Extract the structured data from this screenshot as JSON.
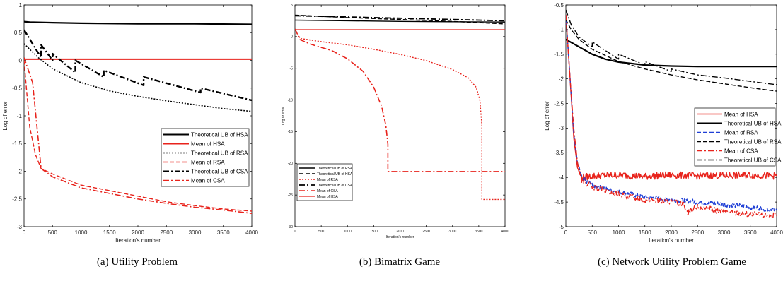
{
  "chart_data": [
    {
      "type": "line",
      "caption": "(a) Utility Problem",
      "xlabel": "Iteration's number",
      "ylabel": "Log of error",
      "xlim": [
        0,
        4000
      ],
      "ylim": [
        -3,
        1
      ],
      "xticks": [
        0,
        500,
        1000,
        1500,
        2000,
        2500,
        3000,
        3500,
        4000
      ],
      "yticks": [
        -3,
        -2.5,
        -2,
        -1.5,
        -1,
        -0.5,
        0,
        0.5,
        1
      ],
      "legend_position": "right",
      "series": [
        {
          "name": "Theoretical UB of HSA",
          "color": "#000000",
          "style": "solid",
          "width": 2.2,
          "x": [
            0,
            100,
            500,
            1000,
            2000,
            3000,
            4000
          ],
          "y": [
            0.7,
            0.69,
            0.68,
            0.67,
            0.66,
            0.66,
            0.65
          ]
        },
        {
          "name": "Mean of HSA",
          "color": "#e8231c",
          "style": "solid",
          "width": 2,
          "x": [
            0,
            4000
          ],
          "y": [
            0.02,
            0.02
          ]
        },
        {
          "name": "Theoretical UB of RSA",
          "color": "#000000",
          "style": "dotted",
          "width": 1.6,
          "x": [
            0,
            250,
            500,
            1000,
            1500,
            2000,
            2500,
            3000,
            3500,
            4000
          ],
          "y": [
            0.3,
            0.05,
            -0.15,
            -0.4,
            -0.55,
            -0.65,
            -0.73,
            -0.8,
            -0.87,
            -0.92
          ]
        },
        {
          "name": "Mean of RSA",
          "color": "#e8231c",
          "style": "dashed",
          "width": 1.4,
          "x": [
            0,
            50,
            100,
            200,
            300,
            500,
            1000,
            1500,
            2000,
            2500,
            3000,
            3500,
            4000
          ],
          "y": [
            0.0,
            -0.6,
            -1.2,
            -1.7,
            -1.95,
            -2.05,
            -2.25,
            -2.35,
            -2.45,
            -2.55,
            -2.62,
            -2.68,
            -2.72
          ]
        },
        {
          "name": "Theoretical UB of CSA",
          "color": "#000000",
          "style": "dashdot",
          "width": 2.4,
          "x": [
            0,
            300,
            300,
            500,
            500,
            900,
            900,
            1400,
            1400,
            2100,
            2100,
            3100,
            3100,
            4000
          ],
          "y": [
            0.55,
            0.05,
            0.28,
            0.0,
            0.12,
            -0.22,
            0.0,
            -0.3,
            -0.18,
            -0.45,
            -0.3,
            -0.58,
            -0.5,
            -0.72
          ]
        },
        {
          "name": "Mean of CSA",
          "color": "#e8231c",
          "style": "dashdot",
          "width": 1.6,
          "x": [
            0,
            150,
            300,
            500,
            1000,
            1500,
            2000,
            2500,
            3000,
            3500,
            4000
          ],
          "y": [
            0.05,
            -0.4,
            -1.95,
            -2.1,
            -2.3,
            -2.4,
            -2.5,
            -2.58,
            -2.65,
            -2.7,
            -2.76
          ]
        }
      ]
    },
    {
      "type": "line",
      "caption": "(b) Bimatrix Game",
      "xlabel": "Iteration's number",
      "ylabel": "Log of error",
      "xlim": [
        0,
        4000
      ],
      "ylim": [
        -30,
        5
      ],
      "xticks": [
        0,
        500,
        1000,
        1500,
        2000,
        2500,
        3000,
        3500,
        4000
      ],
      "yticks": [
        -30,
        -25,
        -20,
        -15,
        -10,
        -5,
        0,
        5
      ],
      "legend_position": "bottom-left",
      "series": [
        {
          "name": "Theoretical UB of RSA",
          "color": "#000000",
          "style": "solid",
          "width": 1.4,
          "x": [
            0,
            1000,
            2000,
            3000,
            4000
          ],
          "y": [
            2.6,
            2.5,
            2.4,
            2.35,
            2.3
          ]
        },
        {
          "name": "Theoretical UB of HSA",
          "color": "#000000",
          "style": "dashed",
          "width": 1.4,
          "x": [
            0,
            1000,
            2000,
            3000,
            4000
          ],
          "y": [
            3.4,
            3.0,
            2.7,
            2.4,
            2.0
          ]
        },
        {
          "name": "Mean of RSA",
          "color": "#e8231c",
          "style": "dotted",
          "width": 1.4,
          "x": [
            0,
            100,
            500,
            1000,
            1500,
            2000,
            2500,
            3000,
            3300,
            3450,
            3520,
            3560,
            3560,
            4000
          ],
          "y": [
            1.2,
            -0.3,
            -0.8,
            -1.3,
            -2.0,
            -2.8,
            -3.8,
            -5.2,
            -6.5,
            -8.0,
            -10.0,
            -14.0,
            -25.7,
            -25.7
          ]
        },
        {
          "name": "Theoretical UB of CSA",
          "color": "#000000",
          "style": "dashdot",
          "width": 1.8,
          "x": [
            0,
            1000,
            2000,
            3000,
            4000
          ],
          "y": [
            3.3,
            3.1,
            2.9,
            2.7,
            2.5
          ]
        },
        {
          "name": "Mean of CSA",
          "color": "#e8231c",
          "style": "dashdot",
          "width": 1.6,
          "x": [
            0,
            100,
            300,
            700,
            1000,
            1300,
            1500,
            1650,
            1730,
            1770,
            1770,
            4000
          ],
          "y": [
            1.2,
            -0.5,
            -1.2,
            -2.2,
            -3.5,
            -5.5,
            -8.0,
            -11.0,
            -14.0,
            -17.0,
            -21.3,
            -21.3
          ]
        },
        {
          "name": "Mean of HSA",
          "color": "#e8231c",
          "style": "solid",
          "width": 1.2,
          "x": [
            0,
            4000
          ],
          "y": [
            1.1,
            1.1
          ]
        }
      ]
    },
    {
      "type": "line",
      "caption": "(c) Network Utility Problem Game",
      "xlabel": "Iteration's number",
      "ylabel": "Log of error",
      "xlim": [
        0,
        4000
      ],
      "ylim": [
        -5,
        -0.5
      ],
      "xticks": [
        0,
        500,
        1000,
        1500,
        2000,
        2500,
        3000,
        3500,
        4000
      ],
      "yticks": [
        -5,
        -4.5,
        -4,
        -3.5,
        -3,
        -2.5,
        -2,
        -1.5,
        -1,
        -0.5
      ],
      "legend_position": "right",
      "series": [
        {
          "name": "Mean of HSA",
          "color": "#e8231c",
          "style": "solid",
          "width": 1.4,
          "x": [
            0,
            80,
            150,
            220,
            300,
            500,
            1000,
            1500,
            2000,
            2500,
            3000,
            3500,
            4000
          ],
          "y": [
            -0.7,
            -2.0,
            -3.2,
            -3.8,
            -4.0,
            -3.97,
            -3.95,
            -3.98,
            -3.95,
            -3.97,
            -3.96,
            -3.95,
            -3.97
          ],
          "noise": 0.07
        },
        {
          "name": "Theoretical UB of HSA",
          "color": "#000000",
          "style": "solid",
          "width": 2.2,
          "x": [
            0,
            250,
            500,
            750,
            1000,
            1500,
            2000,
            2500,
            3000,
            3500,
            4000
          ],
          "y": [
            -1.2,
            -1.35,
            -1.5,
            -1.6,
            -1.66,
            -1.72,
            -1.74,
            -1.75,
            -1.75,
            -1.75,
            -1.75
          ]
        },
        {
          "name": "Mean of RSA",
          "color": "#1f3fd6",
          "style": "dashed",
          "width": 1.4,
          "x": [
            0,
            80,
            150,
            220,
            300,
            500,
            1000,
            1500,
            2000,
            2500,
            3000,
            3500,
            4000
          ],
          "y": [
            -0.7,
            -2.0,
            -3.1,
            -3.7,
            -4.0,
            -4.15,
            -4.3,
            -4.4,
            -4.45,
            -4.5,
            -4.55,
            -4.6,
            -4.67
          ],
          "noise": 0.05
        },
        {
          "name": "Theoretical UB of RSA",
          "color": "#000000",
          "style": "dashed",
          "width": 1.4,
          "x": [
            0,
            100,
            250,
            500,
            1000,
            1500,
            2000,
            2500,
            3000,
            3500,
            4000
          ],
          "y": [
            -0.8,
            -1.0,
            -1.2,
            -1.4,
            -1.65,
            -1.8,
            -1.92,
            -2.02,
            -2.1,
            -2.18,
            -2.25
          ]
        },
        {
          "name": "Mean of CSA",
          "color": "#e8231c",
          "style": "dashdot",
          "width": 1.4,
          "x": [
            0,
            80,
            150,
            220,
            300,
            500,
            1000,
            1500,
            2000,
            2250,
            2300,
            2500,
            3000,
            3500,
            4000
          ],
          "y": [
            -0.7,
            -2.0,
            -3.0,
            -3.7,
            -4.05,
            -4.2,
            -4.35,
            -4.45,
            -4.5,
            -4.55,
            -4.7,
            -4.6,
            -4.7,
            -4.75,
            -4.78
          ],
          "noise": 0.06
        },
        {
          "name": "Theoretical UB of CSA",
          "color": "#000000",
          "style": "dashdot",
          "width": 1.4,
          "x": [
            0,
            100,
            250,
            500,
            500,
            1000,
            1000,
            1500,
            1500,
            2000,
            2000,
            2500,
            3000,
            3500,
            4000
          ],
          "y": [
            -0.6,
            -0.9,
            -1.15,
            -1.35,
            -1.25,
            -1.6,
            -1.5,
            -1.72,
            -1.65,
            -1.85,
            -1.8,
            -1.92,
            -1.98,
            -2.05,
            -2.12
          ]
        }
      ]
    }
  ]
}
